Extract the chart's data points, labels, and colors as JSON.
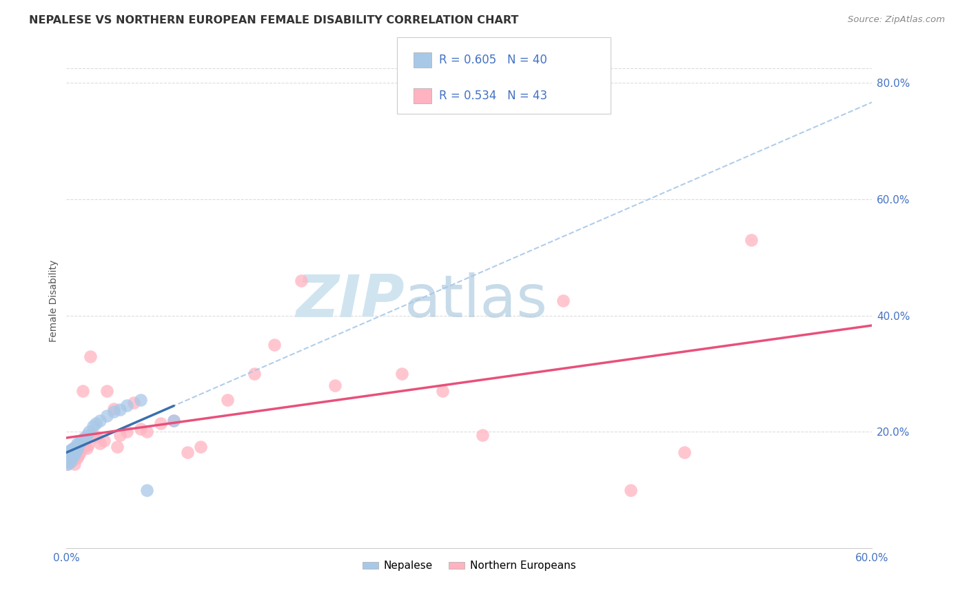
{
  "title": "NEPALESE VS NORTHERN EUROPEAN FEMALE DISABILITY CORRELATION CHART",
  "source": "Source: ZipAtlas.com",
  "ylabel": "Female Disability",
  "xlim": [
    0.0,
    0.6
  ],
  "ylim": [
    0.0,
    0.85
  ],
  "xticks": [
    0.0,
    0.1,
    0.2,
    0.3,
    0.4,
    0.5,
    0.6
  ],
  "xtick_labels": [
    "0.0%",
    "",
    "",
    "",
    "",
    "",
    "60.0%"
  ],
  "yticks_right": [
    0.2,
    0.4,
    0.6,
    0.8
  ],
  "ytick_labels_right": [
    "20.0%",
    "40.0%",
    "60.0%",
    "80.0%"
  ],
  "nepalese_x": [
    0.001,
    0.001,
    0.001,
    0.001,
    0.002,
    0.002,
    0.002,
    0.002,
    0.003,
    0.003,
    0.003,
    0.003,
    0.004,
    0.004,
    0.004,
    0.005,
    0.005,
    0.005,
    0.006,
    0.006,
    0.007,
    0.007,
    0.008,
    0.008,
    0.009,
    0.01,
    0.011,
    0.013,
    0.015,
    0.017,
    0.02,
    0.022,
    0.025,
    0.03,
    0.035,
    0.04,
    0.045,
    0.055,
    0.06,
    0.08
  ],
  "nepalese_y": [
    0.15,
    0.155,
    0.145,
    0.148,
    0.152,
    0.158,
    0.16,
    0.165,
    0.148,
    0.155,
    0.162,
    0.168,
    0.155,
    0.16,
    0.17,
    0.158,
    0.165,
    0.172,
    0.162,
    0.17,
    0.168,
    0.175,
    0.17,
    0.18,
    0.178,
    0.182,
    0.185,
    0.19,
    0.195,
    0.2,
    0.21,
    0.215,
    0.22,
    0.228,
    0.235,
    0.238,
    0.245,
    0.255,
    0.1,
    0.22
  ],
  "northern_x": [
    0.001,
    0.002,
    0.003,
    0.004,
    0.005,
    0.006,
    0.007,
    0.008,
    0.009,
    0.01,
    0.012,
    0.013,
    0.015,
    0.016,
    0.018,
    0.02,
    0.022,
    0.025,
    0.028,
    0.03,
    0.035,
    0.038,
    0.04,
    0.045,
    0.05,
    0.055,
    0.06,
    0.07,
    0.08,
    0.09,
    0.1,
    0.12,
    0.14,
    0.155,
    0.175,
    0.2,
    0.25,
    0.28,
    0.31,
    0.37,
    0.42,
    0.46,
    0.51
  ],
  "northern_y": [
    0.145,
    0.15,
    0.148,
    0.155,
    0.152,
    0.145,
    0.158,
    0.155,
    0.16,
    0.165,
    0.27,
    0.175,
    0.172,
    0.178,
    0.33,
    0.195,
    0.192,
    0.18,
    0.185,
    0.27,
    0.24,
    0.175,
    0.195,
    0.2,
    0.25,
    0.205,
    0.2,
    0.215,
    0.22,
    0.165,
    0.175,
    0.255,
    0.3,
    0.35,
    0.46,
    0.28,
    0.3,
    0.27,
    0.195,
    0.425,
    0.1,
    0.165,
    0.53
  ],
  "nepalese_color": "#a8c8e8",
  "northern_color": "#ffb3c1",
  "nepalese_line_color": "#3a6fad",
  "northern_line_color": "#e8507a",
  "dashed_line_color": "#a8c8e8",
  "watermark_color": "#d0e4f0",
  "background_color": "#ffffff",
  "grid_color": "#d8d8d8",
  "title_color": "#333333",
  "source_color": "#888888",
  "tick_color": "#4472c4",
  "ylabel_color": "#555555"
}
